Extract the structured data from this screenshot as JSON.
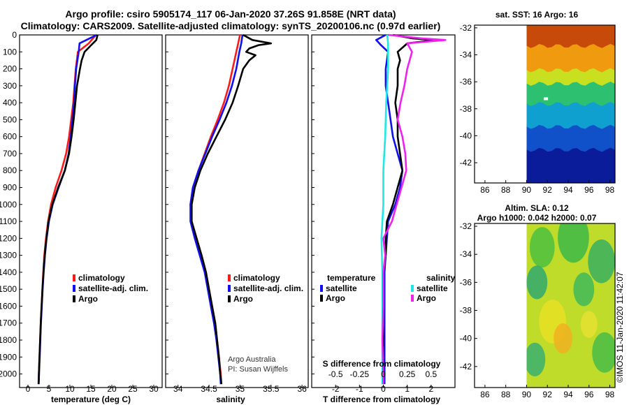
{
  "header": {
    "line1": "Argo profile: csiro 5905174_117 06-Jan-2020 37.26S 91.858E (NRT data)",
    "line2": "Climatology: CARS2009. Satellite-adjusted climatology: synTS_20200106.nc (0.97d earlier)"
  },
  "colors": {
    "climatology": "#ff1a1a",
    "satellite": "#1010ee",
    "argo": "#000000",
    "salinity_sat": "#22e6e6",
    "salinity_argo": "#ee22ee"
  },
  "chart_data": [
    {
      "type": "line",
      "name": "temperature",
      "xlabel": "temperature (deg C)",
      "ylabel": "",
      "xlim": [
        -2,
        32
      ],
      "ylim": [
        2080,
        0
      ],
      "xticks": [
        "0",
        "5",
        "10",
        "15",
        "20",
        "25",
        "30"
      ],
      "xtick_values": [
        0,
        5,
        10,
        15,
        20,
        25,
        30
      ],
      "yticks": [
        "0",
        "100",
        "200",
        "300",
        "400",
        "500",
        "600",
        "700",
        "800",
        "900",
        "1000",
        "1100",
        "1200",
        "1300",
        "1400",
        "1500",
        "1600",
        "1700",
        "1800",
        "1900",
        "2000"
      ],
      "legend": [
        "climatology",
        "satellite-adj. clim.",
        "Argo"
      ],
      "series": [
        {
          "name": "climatology",
          "depth": [
            0,
            50,
            100,
            200,
            300,
            400,
            500,
            600,
            700,
            800,
            900,
            1000,
            1100,
            1200,
            1300,
            1400,
            1500,
            1600,
            1700,
            1800,
            1900,
            2000,
            2060
          ],
          "values": [
            16.2,
            14.5,
            11.9,
            11.4,
            11.1,
            10.8,
            10.3,
            9.8,
            9.1,
            8.0,
            6.6,
            5.5,
            4.8,
            4.3,
            3.9,
            3.65,
            3.45,
            3.25,
            3.05,
            2.9,
            2.75,
            2.6,
            2.5
          ]
        },
        {
          "name": "satellite-adj. clim.",
          "depth": [
            0,
            50,
            100,
            200,
            300,
            400,
            500,
            600,
            700,
            800,
            900,
            1000,
            1100,
            1200,
            1300,
            1400,
            1500,
            1600,
            1700,
            1800,
            1900,
            2000,
            2060
          ],
          "values": [
            16.4,
            12.3,
            12.1,
            11.5,
            11.2,
            11.0,
            10.6,
            10.2,
            9.7,
            8.8,
            7.3,
            5.9,
            5.0,
            4.45,
            4.05,
            3.75,
            3.5,
            3.3,
            3.1,
            2.95,
            2.8,
            2.65,
            2.55
          ]
        },
        {
          "name": "Argo",
          "depth": [
            0,
            30,
            50,
            100,
            150,
            200,
            300,
            400,
            500,
            600,
            700,
            800,
            900,
            1000,
            1100,
            1200,
            1300,
            1400,
            1500,
            1600,
            1700,
            1800,
            1900,
            2000,
            2060
          ],
          "values": [
            16.6,
            16.3,
            15.5,
            13.5,
            12.8,
            12.4,
            11.7,
            11.3,
            10.9,
            10.4,
            9.8,
            8.8,
            7.2,
            5.8,
            4.9,
            4.4,
            4.0,
            3.7,
            3.45,
            3.25,
            3.05,
            2.9,
            2.75,
            2.6,
            2.55
          ]
        }
      ]
    },
    {
      "type": "line",
      "name": "salinity",
      "xlabel": "salinity",
      "xlim": [
        33.8,
        36.1
      ],
      "ylim": [
        2080,
        0
      ],
      "xticks": [
        "34",
        "34.5",
        "35",
        "35.5",
        "36"
      ],
      "xtick_values": [
        34,
        34.5,
        35,
        35.5,
        36
      ],
      "legend": [
        "climatology",
        "satellite-adj. clim.",
        "Argo"
      ],
      "annotations": [
        "Argo Australia",
        "PI: Susan Wijffels"
      ],
      "series": [
        {
          "name": "climatology",
          "depth": [
            0,
            50,
            100,
            200,
            300,
            400,
            500,
            600,
            700,
            800,
            900,
            1000,
            1100,
            1200,
            1300,
            1400,
            1500,
            1600,
            1700,
            1800,
            1900,
            2000,
            2060
          ],
          "values": [
            35.0,
            34.97,
            34.94,
            34.88,
            34.82,
            34.74,
            34.64,
            34.53,
            34.43,
            34.33,
            34.24,
            34.2,
            34.22,
            34.3,
            34.38,
            34.45,
            34.5,
            34.55,
            34.6,
            34.63,
            34.66,
            34.69,
            34.7
          ]
        },
        {
          "name": "satellite-adj. clim.",
          "depth": [
            0,
            50,
            100,
            200,
            300,
            400,
            500,
            600,
            700,
            800,
            900,
            1000,
            1100,
            1200,
            1300,
            1400,
            1500,
            1600,
            1700,
            1800,
            1900,
            2000,
            2060
          ],
          "values": [
            35.04,
            35.02,
            34.99,
            34.94,
            34.87,
            34.78,
            34.67,
            34.55,
            34.44,
            34.33,
            34.24,
            34.2,
            34.2,
            34.27,
            34.35,
            34.43,
            34.48,
            34.53,
            34.58,
            34.62,
            34.65,
            34.68,
            34.69
          ]
        },
        {
          "name": "Argo",
          "depth": [
            0,
            30,
            50,
            60,
            80,
            100,
            120,
            150,
            200,
            300,
            400,
            500,
            600,
            700,
            800,
            900,
            1000,
            1100,
            1200,
            1300,
            1400,
            1500,
            1600,
            1700,
            1800,
            1900,
            2000,
            2060
          ],
          "values": [
            35.05,
            35.2,
            35.5,
            35.3,
            35.15,
            35.1,
            35.25,
            35.15,
            35.05,
            34.97,
            34.88,
            34.76,
            34.62,
            34.48,
            34.36,
            34.27,
            34.22,
            34.22,
            34.3,
            34.38,
            34.45,
            34.5,
            34.55,
            34.6,
            34.63,
            34.66,
            34.68,
            34.7
          ]
        }
      ]
    },
    {
      "type": "line",
      "name": "difference",
      "xlabel": "T difference from climatology",
      "xlabel_top": "S difference from climatology",
      "xlim": [
        -3,
        3
      ],
      "ylim": [
        2080,
        0
      ],
      "xticks": [
        "-2",
        "-1",
        "0",
        "1",
        "2"
      ],
      "xtick_values": [
        -2,
        -1,
        0,
        1,
        2
      ],
      "xticks_top": [
        "-0.5",
        "-0.25",
        "0",
        "0.25",
        "0.5"
      ],
      "legend_temperature": [
        "temperature",
        "satellite",
        "Argo"
      ],
      "legend_salinity": [
        "salinity",
        "satellite",
        "Argo"
      ],
      "series": [
        {
          "name": "temperature satellite",
          "depth": [
            0,
            30,
            60,
            100,
            200,
            300,
            400,
            500,
            600,
            700,
            800,
            900,
            1000,
            1100,
            1200,
            1300,
            1400,
            1600,
            1800,
            2000,
            2060
          ],
          "values": [
            0.1,
            -0.3,
            -0.1,
            0.2,
            0.1,
            0.1,
            0.2,
            0.3,
            0.4,
            0.6,
            0.8,
            0.7,
            0.5,
            0.2,
            0.15,
            0.1,
            0.05,
            0.05,
            0.05,
            0.05,
            0.05
          ]
        },
        {
          "name": "temperature Argo",
          "depth": [
            0,
            20,
            30,
            50,
            100,
            150,
            200,
            300,
            400,
            500,
            600,
            700,
            800,
            900,
            1000,
            1100,
            1200,
            1300,
            1400,
            1600,
            1800,
            2000,
            2060
          ],
          "values": [
            0.4,
            1.2,
            2.2,
            1.0,
            0.6,
            0.7,
            0.6,
            0.6,
            0.5,
            0.6,
            0.6,
            0.7,
            0.8,
            0.6,
            0.4,
            0.15,
            0.1,
            0.1,
            0.0,
            0.0,
            0.0,
            0.0,
            0.0
          ]
        },
        {
          "name": "salinity satellite",
          "depth": [
            0,
            50,
            100,
            200,
            300,
            400,
            600,
            800,
            1000,
            1200,
            1400,
            1600,
            1800,
            2000,
            2060
          ],
          "values": [
            0.04,
            0.05,
            0.05,
            0.05,
            0.04,
            0.03,
            0.02,
            0.0,
            0.0,
            -0.02,
            -0.01,
            -0.01,
            -0.01,
            -0.01,
            -0.01
          ]
        },
        {
          "name": "salinity Argo",
          "depth": [
            0,
            20,
            30,
            50,
            100,
            200,
            300,
            400,
            500,
            600,
            700,
            800,
            900,
            1000,
            1100,
            1200,
            1300,
            1400,
            1600,
            1800,
            2000,
            2060
          ],
          "values": [
            0.05,
            0.4,
            0.65,
            0.25,
            0.3,
            0.25,
            0.22,
            0.18,
            0.15,
            0.2,
            0.23,
            0.24,
            0.19,
            0.14,
            0.09,
            0.0,
            0.02,
            0.0,
            0.0,
            -0.01,
            0.0,
            0.0
          ]
        }
      ]
    },
    {
      "type": "heatmap",
      "name": "sst-map",
      "title": "sat. SST: 16 Argo: 16",
      "xlim": [
        85,
        98.5
      ],
      "ylim": [
        -43.5,
        -31.8
      ],
      "xticks": [
        "86",
        "88",
        "90",
        "92",
        "94",
        "96",
        "98"
      ],
      "xtick_values": [
        86,
        88,
        90,
        92,
        94,
        96,
        98
      ],
      "yticks": [
        "-32",
        "-34",
        "-36",
        "-38",
        "-40",
        "-42"
      ],
      "ytick_values": [
        -32,
        -34,
        -36,
        -38,
        -40,
        -42
      ],
      "data_extent_lon": [
        90,
        98.5
      ],
      "profile_location": [
        91.858,
        -37.26
      ],
      "color_bands": [
        {
          "lat_top": -31.8,
          "lat_bottom": -33.5,
          "color": "#c84a0a"
        },
        {
          "lat_top": -33.5,
          "lat_bottom": -35.3,
          "color": "#f09a10"
        },
        {
          "lat_top": -35.3,
          "lat_bottom": -36.3,
          "color": "#c8e020"
        },
        {
          "lat_top": -36.3,
          "lat_bottom": -37.8,
          "color": "#2cc070"
        },
        {
          "lat_top": -37.8,
          "lat_bottom": -39.5,
          "color": "#10a0d0"
        },
        {
          "lat_top": -39.5,
          "lat_bottom": -41.2,
          "color": "#1050c8"
        },
        {
          "lat_top": -41.2,
          "lat_bottom": -43.5,
          "color": "#0a1c9a"
        }
      ]
    },
    {
      "type": "heatmap",
      "name": "sla-map",
      "title": "Altim. SLA: 0.12",
      "subtitle": "Argo h1000: 0.042 h2000: 0.07",
      "xlim": [
        85,
        98.5
      ],
      "ylim": [
        -43.5,
        -31.8
      ],
      "xticks": [
        "86",
        "88",
        "90",
        "92",
        "94",
        "96",
        "98"
      ],
      "xtick_values": [
        86,
        88,
        90,
        92,
        94,
        96,
        98
      ],
      "yticks": [
        "-32",
        "-34",
        "-36",
        "-38",
        "-40",
        "-42"
      ],
      "ytick_values": [
        -32,
        -34,
        -36,
        -38,
        -40,
        -42
      ],
      "data_extent_lon": [
        90,
        98.5
      ],
      "background_color": "#c0dc2a",
      "blobs": [
        {
          "lon": 91.5,
          "lat": -33.5,
          "r": 1.2,
          "color": "#4cc040"
        },
        {
          "lon": 94.5,
          "lat": -32.8,
          "r": 1.5,
          "color": "#3cb848"
        },
        {
          "lon": 97.2,
          "lat": -34.5,
          "r": 1.3,
          "color": "#38b060"
        },
        {
          "lon": 91.0,
          "lat": -36.0,
          "r": 1.0,
          "color": "#30a870"
        },
        {
          "lon": 95.5,
          "lat": -36.5,
          "r": 1.0,
          "color": "#40b858"
        },
        {
          "lon": 92.5,
          "lat": -38.8,
          "r": 1.3,
          "color": "#e8e024"
        },
        {
          "lon": 93.5,
          "lat": -40.0,
          "r": 0.9,
          "color": "#f0b020"
        },
        {
          "lon": 90.8,
          "lat": -41.5,
          "r": 1.0,
          "color": "#38b070"
        },
        {
          "lon": 97.5,
          "lat": -41.0,
          "r": 1.2,
          "color": "#48bc48"
        },
        {
          "lon": 96.0,
          "lat": -39.0,
          "r": 0.8,
          "color": "#e4e030"
        }
      ]
    }
  ],
  "footer": {
    "timestamp": "©IMOS 11-Jan-2020 11:42:07"
  }
}
